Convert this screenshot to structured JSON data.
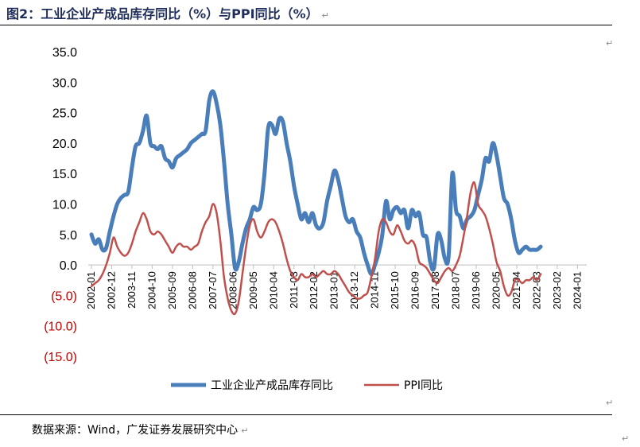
{
  "title": "图2：工业企业产成品库存同比（%）与PPI同比（%）",
  "source": "数据来源：Wind，广发证券发展研究中心",
  "chart_data": {
    "type": "line",
    "title": "图2：工业企业产成品库存同比（%）与PPI同比（%）",
    "xlabel": "",
    "ylabel": "",
    "ylim": [
      -15,
      35
    ],
    "y_ticks": [
      35,
      30,
      25,
      20,
      15,
      10,
      5,
      0,
      -5,
      -10,
      -15
    ],
    "y_tick_labels": [
      "35.0",
      "30.0",
      "25.0",
      "20.0",
      "15.0",
      "10.0",
      "5.0",
      "0.0",
      "(5.0)",
      "(10.0)",
      "(15.0)"
    ],
    "x_tick_labels": [
      "2002-01",
      "2002-12",
      "2003-11",
      "2004-10",
      "2005-09",
      "2006-08",
      "2007-07",
      "2008-06",
      "2009-05",
      "2010-04",
      "2011-03",
      "2012-02",
      "2013-01",
      "2013-12",
      "2014-11",
      "2015-10",
      "2016-09",
      "2017-08",
      "2018-07",
      "2019-06",
      "2020-05",
      "2021-04",
      "2022-03",
      "2023-02",
      "2024-01"
    ],
    "legend_position": "bottom",
    "grid": false,
    "series": [
      {
        "name": "工业企业产成品库存同比",
        "color": "#4a7ebb",
        "points": [
          [
            "2002-01",
            5.0
          ],
          [
            "2002-03",
            3.5
          ],
          [
            "2002-05",
            4.2
          ],
          [
            "2002-07",
            2.5
          ],
          [
            "2002-09",
            2.8
          ],
          [
            "2002-11",
            5.5
          ],
          [
            "2003-01",
            8.0
          ],
          [
            "2003-03",
            10.0
          ],
          [
            "2003-05",
            11.0
          ],
          [
            "2003-07",
            11.5
          ],
          [
            "2003-09",
            12.0
          ],
          [
            "2003-11",
            16.0
          ],
          [
            "2004-01",
            19.5
          ],
          [
            "2004-03",
            20.0
          ],
          [
            "2004-05",
            22.0
          ],
          [
            "2004-07",
            24.5
          ],
          [
            "2004-09",
            20.0
          ],
          [
            "2004-11",
            19.5
          ],
          [
            "2005-01",
            19.0
          ],
          [
            "2005-03",
            19.5
          ],
          [
            "2005-05",
            17.5
          ],
          [
            "2005-07",
            17.0
          ],
          [
            "2005-09",
            16.0
          ],
          [
            "2005-11",
            17.5
          ],
          [
            "2006-01",
            18.0
          ],
          [
            "2006-03",
            18.5
          ],
          [
            "2006-05",
            19.0
          ],
          [
            "2006-07",
            20.0
          ],
          [
            "2006-09",
            20.5
          ],
          [
            "2006-11",
            21.0
          ],
          [
            "2007-01",
            21.5
          ],
          [
            "2007-03",
            22.0
          ],
          [
            "2007-05",
            27.0
          ],
          [
            "2007-07",
            28.5
          ],
          [
            "2007-09",
            26.5
          ],
          [
            "2007-11",
            23.0
          ],
          [
            "2008-01",
            17.0
          ],
          [
            "2008-03",
            10.0
          ],
          [
            "2008-05",
            5.0
          ],
          [
            "2008-07",
            -0.5
          ],
          [
            "2008-09",
            0.5
          ],
          [
            "2008-11",
            3.5
          ],
          [
            "2009-01",
            6.0
          ],
          [
            "2009-03",
            7.5
          ],
          [
            "2009-05",
            9.5
          ],
          [
            "2009-07",
            9.0
          ],
          [
            "2009-09",
            10.0
          ],
          [
            "2009-11",
            15.0
          ],
          [
            "2010-01",
            22.5
          ],
          [
            "2010-03",
            23.0
          ],
          [
            "2010-05",
            21.5
          ],
          [
            "2010-07",
            24.0
          ],
          [
            "2010-09",
            23.5
          ],
          [
            "2010-11",
            20.0
          ],
          [
            "2011-01",
            17.0
          ],
          [
            "2011-03",
            13.0
          ],
          [
            "2011-05",
            10.0
          ],
          [
            "2011-07",
            7.5
          ],
          [
            "2011-09",
            8.5
          ],
          [
            "2011-11",
            7.0
          ],
          [
            "2012-01",
            8.5
          ],
          [
            "2012-03",
            6.5
          ],
          [
            "2012-05",
            6.0
          ],
          [
            "2012-07",
            7.0
          ],
          [
            "2012-09",
            10.5
          ],
          [
            "2012-11",
            13.0
          ],
          [
            "2013-01",
            15.5
          ],
          [
            "2013-03",
            14.0
          ],
          [
            "2013-05",
            11.0
          ],
          [
            "2013-07",
            8.0
          ],
          [
            "2013-09",
            7.0
          ],
          [
            "2013-11",
            7.5
          ],
          [
            "2014-01",
            5.5
          ],
          [
            "2014-03",
            4.5
          ],
          [
            "2014-05",
            2.0
          ],
          [
            "2014-07",
            0.0
          ],
          [
            "2014-09",
            -1.5
          ],
          [
            "2014-11",
            0.0
          ],
          [
            "2015-01",
            2.0
          ],
          [
            "2015-03",
            5.0
          ],
          [
            "2015-05",
            10.5
          ],
          [
            "2015-07",
            7.5
          ],
          [
            "2015-09",
            9.0
          ],
          [
            "2015-11",
            9.5
          ],
          [
            "2016-01",
            8.5
          ],
          [
            "2016-03",
            9.0
          ],
          [
            "2016-05",
            6.0
          ],
          [
            "2016-07",
            9.0
          ],
          [
            "2016-09",
            8.0
          ],
          [
            "2016-11",
            8.5
          ],
          [
            "2017-01",
            5.0
          ],
          [
            "2017-03",
            4.5
          ],
          [
            "2017-05",
            0.5
          ],
          [
            "2017-07",
            -0.5
          ],
          [
            "2017-09",
            5.0
          ],
          [
            "2017-11",
            4.0
          ],
          [
            "2018-01",
            1.0
          ],
          [
            "2018-03",
            1.5
          ],
          [
            "2018-05",
            15.0
          ],
          [
            "2018-07",
            9.0
          ],
          [
            "2018-09",
            8.0
          ],
          [
            "2018-11",
            6.0
          ],
          [
            "2019-01",
            7.5
          ],
          [
            "2019-03",
            8.0
          ],
          [
            "2019-05",
            9.0
          ],
          [
            "2019-07",
            11.5
          ],
          [
            "2019-09",
            14.0
          ],
          [
            "2019-11",
            17.5
          ],
          [
            "2020-01",
            17.0
          ],
          [
            "2020-03",
            20.0
          ],
          [
            "2020-05",
            18.0
          ],
          [
            "2020-07",
            14.5
          ],
          [
            "2020-09",
            11.0
          ],
          [
            "2020-11",
            10.0
          ],
          [
            "2021-01",
            7.5
          ],
          [
            "2021-03",
            4.0
          ],
          [
            "2021-05",
            2.0
          ],
          [
            "2021-07",
            2.5
          ],
          [
            "2021-09",
            3.0
          ],
          [
            "2021-11",
            2.5
          ],
          [
            "2022-01",
            2.5
          ],
          [
            "2022-03",
            2.5
          ],
          [
            "2022-05",
            3.0
          ]
        ]
      },
      {
        "name": "PPI同比",
        "color": "#c0504d",
        "points": [
          [
            "2002-01",
            -3.5
          ],
          [
            "2002-03",
            -3.0
          ],
          [
            "2002-05",
            -2.5
          ],
          [
            "2002-07",
            -1.5
          ],
          [
            "2002-09",
            0.0
          ],
          [
            "2002-11",
            2.0
          ],
          [
            "2003-01",
            4.5
          ],
          [
            "2003-03",
            3.0
          ],
          [
            "2003-05",
            2.0
          ],
          [
            "2003-07",
            1.5
          ],
          [
            "2003-09",
            2.0
          ],
          [
            "2003-11",
            3.5
          ],
          [
            "2004-01",
            5.5
          ],
          [
            "2004-03",
            7.0
          ],
          [
            "2004-05",
            8.5
          ],
          [
            "2004-07",
            7.5
          ],
          [
            "2004-09",
            5.5
          ],
          [
            "2004-11",
            5.0
          ],
          [
            "2005-01",
            5.5
          ],
          [
            "2005-03",
            5.0
          ],
          [
            "2005-05",
            4.0
          ],
          [
            "2005-07",
            3.0
          ],
          [
            "2005-09",
            2.0
          ],
          [
            "2005-11",
            3.0
          ],
          [
            "2006-01",
            3.5
          ],
          [
            "2006-03",
            3.0
          ],
          [
            "2006-05",
            3.0
          ],
          [
            "2006-07",
            2.5
          ],
          [
            "2006-09",
            3.0
          ],
          [
            "2006-11",
            3.5
          ],
          [
            "2007-01",
            5.5
          ],
          [
            "2007-03",
            7.0
          ],
          [
            "2007-05",
            8.0
          ],
          [
            "2007-07",
            10.0
          ],
          [
            "2007-09",
            8.5
          ],
          [
            "2007-11",
            4.0
          ],
          [
            "2008-01",
            -2.0
          ],
          [
            "2008-03",
            -5.5
          ],
          [
            "2008-05",
            -7.5
          ],
          [
            "2008-07",
            -8.0
          ],
          [
            "2008-09",
            -6.0
          ],
          [
            "2008-11",
            -1.5
          ],
          [
            "2009-01",
            3.0
          ],
          [
            "2009-03",
            6.5
          ],
          [
            "2009-05",
            7.5
          ],
          [
            "2009-07",
            5.5
          ],
          [
            "2009-09",
            4.5
          ],
          [
            "2009-11",
            5.5
          ],
          [
            "2010-01",
            7.0
          ],
          [
            "2010-03",
            7.5
          ],
          [
            "2010-05",
            7.0
          ],
          [
            "2010-07",
            5.5
          ],
          [
            "2010-09",
            3.5
          ],
          [
            "2010-11",
            1.0
          ],
          [
            "2011-01",
            -1.0
          ],
          [
            "2011-03",
            -2.0
          ],
          [
            "2011-05",
            -2.5
          ],
          [
            "2011-07",
            -1.5
          ],
          [
            "2011-09",
            -2.0
          ],
          [
            "2011-11",
            -2.0
          ],
          [
            "2012-01",
            -1.5
          ],
          [
            "2012-03",
            -2.0
          ],
          [
            "2012-05",
            -1.5
          ],
          [
            "2012-07",
            -1.0
          ],
          [
            "2012-09",
            -1.5
          ],
          [
            "2012-11",
            -1.5
          ],
          [
            "2013-01",
            -1.0
          ],
          [
            "2013-03",
            -1.5
          ],
          [
            "2013-05",
            -2.5
          ],
          [
            "2013-07",
            -3.5
          ],
          [
            "2013-09",
            -4.5
          ],
          [
            "2013-11",
            -5.0
          ],
          [
            "2014-01",
            -5.5
          ],
          [
            "2014-03",
            -5.5
          ],
          [
            "2014-05",
            -5.0
          ],
          [
            "2014-07",
            -4.5
          ],
          [
            "2014-09",
            -2.0
          ],
          [
            "2014-11",
            1.0
          ],
          [
            "2015-01",
            5.5
          ],
          [
            "2015-03",
            7.5
          ],
          [
            "2015-05",
            7.0
          ],
          [
            "2015-07",
            5.5
          ],
          [
            "2015-09",
            5.0
          ],
          [
            "2015-11",
            6.5
          ],
          [
            "2016-01",
            5.5
          ],
          [
            "2016-03",
            4.0
          ],
          [
            "2016-05",
            3.5
          ],
          [
            "2016-07",
            4.0
          ],
          [
            "2016-09",
            3.0
          ],
          [
            "2016-11",
            0.5
          ],
          [
            "2017-01",
            0.0
          ],
          [
            "2017-03",
            -0.5
          ],
          [
            "2017-05",
            -1.5
          ],
          [
            "2017-07",
            -2.5
          ],
          [
            "2017-09",
            -3.0
          ],
          [
            "2017-11",
            -2.0
          ],
          [
            "2018-01",
            -1.0
          ],
          [
            "2018-03",
            -0.5
          ],
          [
            "2018-05",
            -1.0
          ],
          [
            "2018-07",
            0.0
          ],
          [
            "2018-09",
            1.5
          ],
          [
            "2018-11",
            4.5
          ],
          [
            "2019-01",
            8.0
          ],
          [
            "2019-03",
            12.0
          ],
          [
            "2019-05",
            13.5
          ],
          [
            "2019-07",
            10.0
          ],
          [
            "2019-09",
            9.0
          ],
          [
            "2019-11",
            8.0
          ],
          [
            "2020-01",
            6.0
          ],
          [
            "2020-03",
            3.5
          ],
          [
            "2020-05",
            0.5
          ],
          [
            "2020-07",
            -1.0
          ],
          [
            "2020-09",
            -3.5
          ],
          [
            "2020-11",
            -5.0
          ],
          [
            "2021-01",
            -4.5
          ],
          [
            "2021-03",
            -2.5
          ],
          [
            "2021-05",
            -2.5
          ],
          [
            "2021-07",
            -3.0
          ],
          [
            "2021-09",
            -2.5
          ],
          [
            "2021-11",
            -2.5
          ],
          [
            "2022-01",
            -2.0
          ],
          [
            "2022-03",
            -2.5
          ],
          [
            "2022-05",
            -1.5
          ]
        ]
      }
    ]
  }
}
